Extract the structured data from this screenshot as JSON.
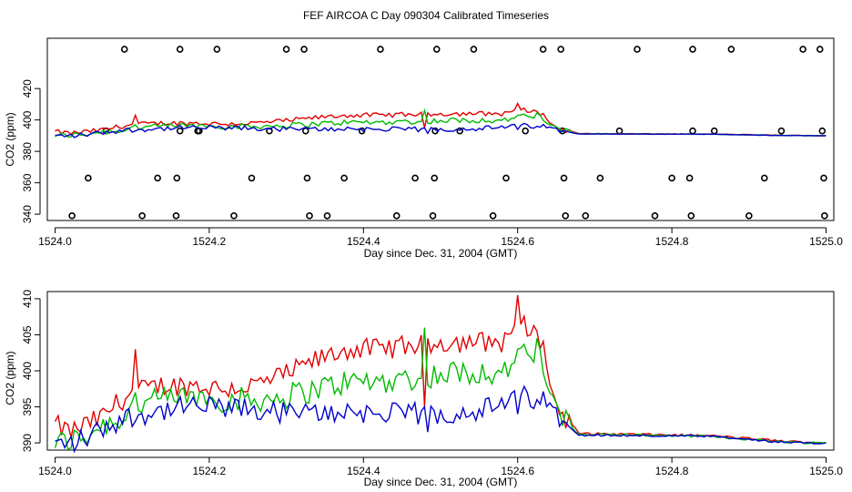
{
  "title": "FEF AIRCOA C  Day 090304  Calibrated Timeseries",
  "colors": {
    "series1": "#e00000",
    "series2": "#00bb00",
    "series3": "#0000cc",
    "axis": "#000000"
  },
  "chart_data": [
    {
      "type": "line",
      "name": "top-panel",
      "xlabel": "Day since Dec. 31, 2004 (GMT)",
      "ylabel": "CO2 (ppm)",
      "xlim": [
        1523.99,
        1525.01
      ],
      "ylim": [
        336,
        452
      ],
      "xticks": [
        "1524.0",
        "1524.2",
        "1524.4",
        "1524.6",
        "1524.8",
        "1525.0"
      ],
      "yticks": [
        "340",
        "360",
        "380",
        "400",
        "420"
      ],
      "ytick_values": [
        340,
        360,
        380,
        400,
        420
      ],
      "xtick_values": [
        1524.0,
        1524.2,
        1524.4,
        1524.6,
        1524.8,
        1525.0
      ],
      "scatter": [
        [
          1524.09,
          445
        ],
        [
          1524.162,
          445
        ],
        [
          1524.21,
          445
        ],
        [
          1524.3,
          445
        ],
        [
          1524.323,
          445
        ],
        [
          1524.422,
          445
        ],
        [
          1524.495,
          445
        ],
        [
          1524.543,
          445
        ],
        [
          1524.633,
          445
        ],
        [
          1524.656,
          445
        ],
        [
          1524.755,
          445
        ],
        [
          1524.827,
          445
        ],
        [
          1524.877,
          445
        ],
        [
          1524.97,
          445
        ],
        [
          1524.992,
          445
        ],
        [
          1524.066,
          393
        ],
        [
          1524.162,
          393
        ],
        [
          1524.185,
          393
        ],
        [
          1524.187,
          393
        ],
        [
          1524.278,
          393
        ],
        [
          1524.325,
          393
        ],
        [
          1524.398,
          393
        ],
        [
          1524.493,
          393
        ],
        [
          1524.525,
          393
        ],
        [
          1524.61,
          393
        ],
        [
          1524.658,
          393
        ],
        [
          1524.732,
          393
        ],
        [
          1524.827,
          393
        ],
        [
          1524.855,
          393
        ],
        [
          1524.942,
          393
        ],
        [
          1524.995,
          393
        ],
        [
          1524.043,
          363
        ],
        [
          1524.133,
          363
        ],
        [
          1524.158,
          363
        ],
        [
          1524.255,
          363
        ],
        [
          1524.327,
          363
        ],
        [
          1524.375,
          363
        ],
        [
          1524.467,
          363
        ],
        [
          1524.492,
          363
        ],
        [
          1524.585,
          363
        ],
        [
          1524.66,
          363
        ],
        [
          1524.707,
          363
        ],
        [
          1524.8,
          363
        ],
        [
          1524.823,
          363
        ],
        [
          1524.92,
          363
        ],
        [
          1524.997,
          363
        ],
        [
          1524.022,
          339
        ],
        [
          1524.113,
          339
        ],
        [
          1524.157,
          339
        ],
        [
          1524.232,
          339
        ],
        [
          1524.33,
          339
        ],
        [
          1524.353,
          339
        ],
        [
          1524.443,
          339
        ],
        [
          1524.49,
          339
        ],
        [
          1524.568,
          339
        ],
        [
          1524.662,
          339
        ],
        [
          1524.688,
          339
        ],
        [
          1524.778,
          339
        ],
        [
          1524.825,
          339
        ],
        [
          1524.9,
          339
        ],
        [
          1524.998,
          339
        ]
      ]
    },
    {
      "type": "line",
      "name": "bottom-panel",
      "xlabel": "Day since Dec. 31, 2004 (GMT)",
      "ylabel": "CO2 (ppm)",
      "xlim": [
        1523.99,
        1525.01
      ],
      "ylim": [
        389,
        411
      ],
      "xticks": [
        "1524.0",
        "1524.2",
        "1524.4",
        "1524.6",
        "1524.8",
        "1525.0"
      ],
      "yticks": [
        "390",
        "395",
        "400",
        "405",
        "410"
      ],
      "ytick_values": [
        390,
        395,
        400,
        405,
        410
      ],
      "xtick_values": [
        1524.0,
        1524.2,
        1524.4,
        1524.6,
        1524.8,
        1525.0
      ]
    }
  ],
  "series_keypoints": {
    "names": [
      "red",
      "green",
      "blue"
    ],
    "points": [
      [
        1524.0,
        392.5,
        390.0,
        389.8
      ],
      [
        1524.02,
        391.5,
        390.3,
        389.9
      ],
      [
        1524.04,
        392.5,
        391.0,
        390.6
      ],
      [
        1524.06,
        393.5,
        392.5,
        392.0
      ],
      [
        1524.08,
        395.5,
        393.0,
        393.0
      ],
      [
        1524.1,
        397.0,
        395.0,
        393.8
      ],
      [
        1524.14,
        398.0,
        396.0,
        394.5
      ],
      [
        1524.18,
        398.0,
        396.5,
        395.0
      ],
      [
        1524.22,
        397.5,
        396.0,
        394.8
      ],
      [
        1524.26,
        398.0,
        396.0,
        394.5
      ],
      [
        1524.3,
        399.5,
        396.5,
        394.2
      ],
      [
        1524.34,
        401.5,
        397.5,
        394.0
      ],
      [
        1524.38,
        403.0,
        398.5,
        394.5
      ],
      [
        1524.42,
        403.0,
        398.5,
        394.0
      ],
      [
        1524.46,
        403.5,
        399.0,
        394.0
      ],
      [
        1524.5,
        404.0,
        399.5,
        394.0
      ],
      [
        1524.54,
        404.0,
        400.0,
        394.5
      ],
      [
        1524.58,
        404.0,
        399.5,
        395.0
      ],
      [
        1524.6,
        407.0,
        402.0,
        396.5
      ],
      [
        1524.63,
        404.5,
        402.0,
        396.0
      ],
      [
        1524.65,
        395.0,
        394.0,
        394.0
      ],
      [
        1524.68,
        391.3,
        391.2,
        391.1
      ],
      [
        1524.75,
        391.2,
        391.1,
        391.0
      ],
      [
        1524.85,
        391.0,
        390.9,
        390.9
      ],
      [
        1524.95,
        390.2,
        390.1,
        390.0
      ],
      [
        1525.0,
        390.0,
        390.0,
        390.0
      ]
    ],
    "spikes": [
      [
        1524.105,
        403.0,
        397.0,
        393.0
      ],
      [
        1524.48,
        395.0,
        406.0,
        395.0
      ],
      [
        1524.485,
        404.5,
        398.0,
        391.5
      ],
      [
        1524.598,
        410.5,
        403.0,
        394.0
      ],
      [
        1524.625,
        405.5,
        404.5,
        396.0
      ]
    ]
  }
}
